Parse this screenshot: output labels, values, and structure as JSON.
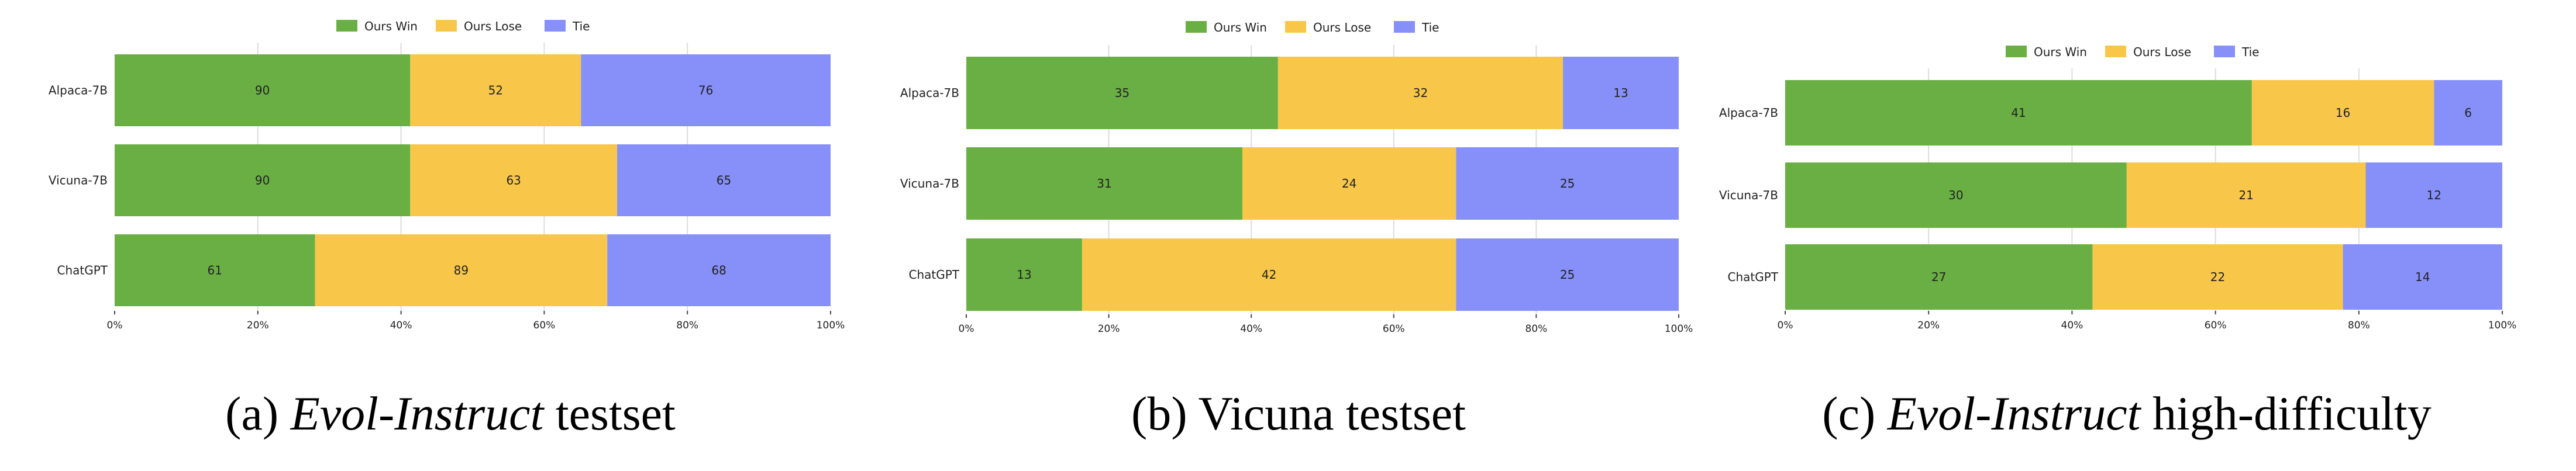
{
  "chart_data": [
    {
      "type": "bar",
      "orientation": "horizontal",
      "stacked": true,
      "normalized_percent": true,
      "legend_placement": "top-center",
      "grid": true,
      "colors": [
        "#6aaf44",
        "#f8c74a",
        "#8690f8"
      ],
      "legend": [
        "Ours Win",
        "Ours Lose",
        "Tie"
      ],
      "categories": [
        "Alpaca-7B",
        "Vicuna-7B",
        "ChatGPT"
      ],
      "series": [
        {
          "name": "Ours Win",
          "values": [
            90,
            90,
            61
          ]
        },
        {
          "name": "Ours Lose",
          "values": [
            52,
            63,
            89
          ]
        },
        {
          "name": "Tie",
          "values": [
            76,
            65,
            68
          ]
        }
      ],
      "xticks": [
        "0%",
        "20%",
        "40%",
        "60%",
        "80%",
        "100%"
      ],
      "caption": {
        "prefix": "(a) ",
        "italic": "Evol-Instruct",
        "suffix": " testset"
      }
    },
    {
      "type": "bar",
      "orientation": "horizontal",
      "stacked": true,
      "normalized_percent": true,
      "legend_placement": "top-center",
      "grid": true,
      "colors": [
        "#6aaf44",
        "#f8c74a",
        "#8690f8"
      ],
      "legend": [
        "Ours Win",
        "Ours Lose",
        "Tie"
      ],
      "categories": [
        "Alpaca-7B",
        "Vicuna-7B",
        "ChatGPT"
      ],
      "series": [
        {
          "name": "Ours Win",
          "values": [
            35,
            31,
            13
          ]
        },
        {
          "name": "Ours Lose",
          "values": [
            32,
            24,
            42
          ]
        },
        {
          "name": "Tie",
          "values": [
            13,
            25,
            25
          ]
        }
      ],
      "xticks": [
        "0%",
        "20%",
        "40%",
        "60%",
        "80%",
        "100%"
      ],
      "caption": {
        "prefix": "(b) Vicuna testset",
        "italic": "",
        "suffix": ""
      }
    },
    {
      "type": "bar",
      "orientation": "horizontal",
      "stacked": true,
      "normalized_percent": true,
      "legend_placement": "top-center",
      "grid": true,
      "colors": [
        "#6aaf44",
        "#f8c74a",
        "#8690f8"
      ],
      "legend": [
        "Ours Win",
        "Ours Lose",
        "Tie"
      ],
      "categories": [
        "Alpaca-7B",
        "Vicuna-7B",
        "ChatGPT"
      ],
      "series": [
        {
          "name": "Ours Win",
          "values": [
            41,
            30,
            27
          ]
        },
        {
          "name": "Ours Lose",
          "values": [
            16,
            21,
            22
          ]
        },
        {
          "name": "Tie",
          "values": [
            6,
            12,
            14
          ]
        }
      ],
      "xticks": [
        "0%",
        "20%",
        "40%",
        "60%",
        "80%",
        "100%"
      ],
      "caption": {
        "prefix": "(c) ",
        "italic": "Evol-Instruct",
        "suffix": " high-difficulty"
      }
    }
  ]
}
